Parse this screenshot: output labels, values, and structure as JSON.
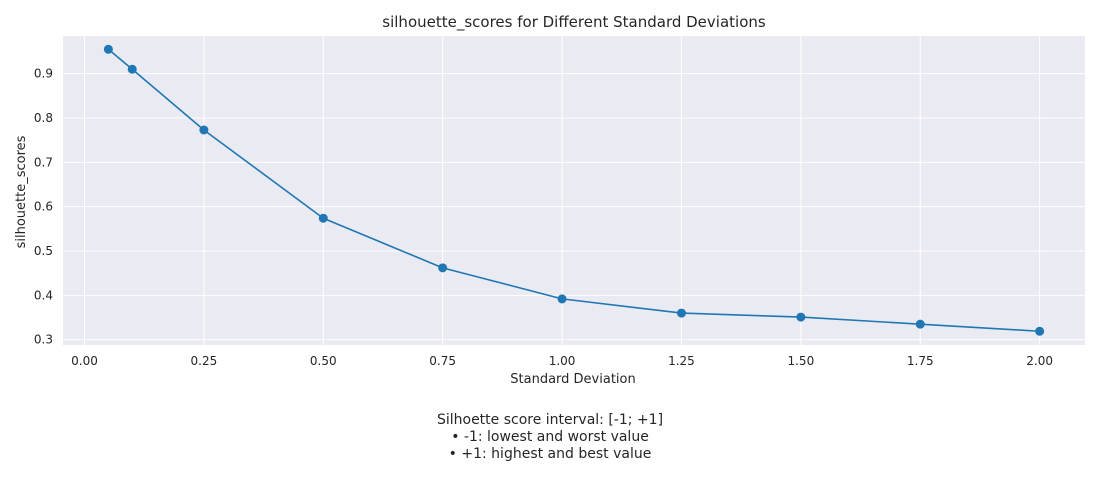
{
  "chart_data": {
    "type": "line",
    "title": "silhouette_scores for Different Standard Deviations",
    "xlabel": "Standard Deviation",
    "ylabel": "silhouette_scores",
    "xlim": [
      -0.045,
      2.095
    ],
    "ylim": [
      0.288,
      0.985
    ],
    "x_ticks": [
      0.0,
      0.25,
      0.5,
      0.75,
      1.0,
      1.25,
      1.5,
      1.75,
      2.0
    ],
    "x_tick_labels": [
      "0.00",
      "0.25",
      "0.50",
      "0.75",
      "1.00",
      "1.25",
      "1.50",
      "1.75",
      "2.00"
    ],
    "y_ticks": [
      0.3,
      0.4,
      0.5,
      0.6,
      0.7,
      0.8,
      0.9
    ],
    "y_tick_labels": [
      "0.3",
      "0.4",
      "0.5",
      "0.6",
      "0.7",
      "0.8",
      "0.9"
    ],
    "grid": true,
    "series": [
      {
        "color": "#1f77b4",
        "marker": "circle",
        "x": [
          0.05,
          0.1,
          0.25,
          0.5,
          0.75,
          1.0,
          1.25,
          1.5,
          1.75,
          2.0
        ],
        "values": [
          0.955,
          0.91,
          0.773,
          0.574,
          0.462,
          0.392,
          0.36,
          0.351,
          0.335,
          0.319
        ]
      }
    ]
  },
  "caption": {
    "line1": "Silhoette score interval: [-1; +1]",
    "line2": "• -1: lowest and worst value",
    "line3": "• +1: highest and best value"
  },
  "style": {
    "plot_background": "#eaeaf2",
    "grid_color": "#ffffff",
    "line_color": "#1f77b4"
  }
}
